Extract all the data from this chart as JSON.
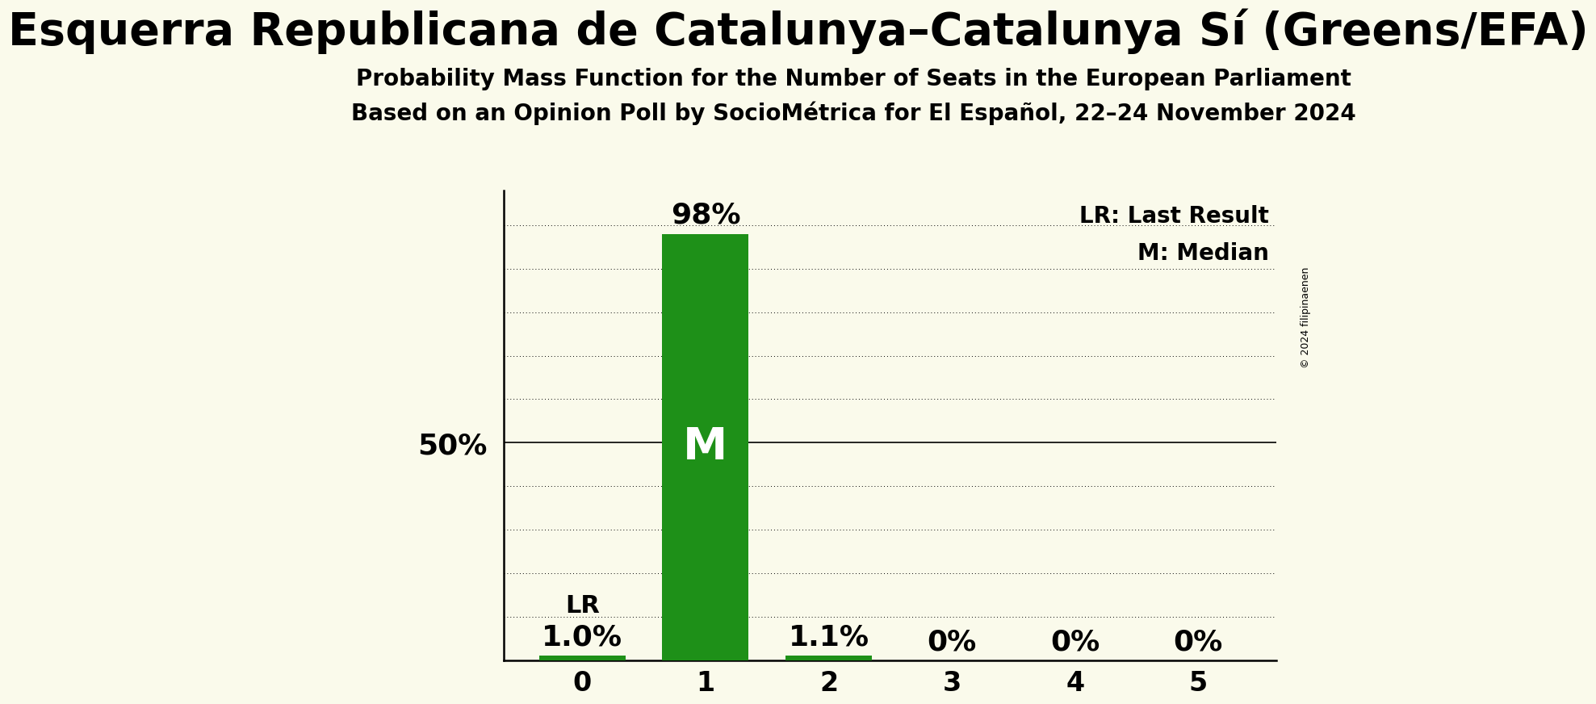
{
  "title": "Esquerra Republicana de Catalunya–Catalunya Sí (Greens/EFA)",
  "subtitle1": "Probability Mass Function for the Number of Seats in the European Parliament",
  "subtitle2": "Based on an Opinion Poll by SocioMétrica for El Español, 22–24 November 2024",
  "categories": [
    0,
    1,
    2,
    3,
    4,
    5
  ],
  "values": [
    1.0,
    98.0,
    1.1,
    0.0,
    0.0,
    0.0
  ],
  "bar_color": "#1E9018",
  "background_color": "#FAFAEB",
  "median_bar": 1,
  "last_result_bar": 0,
  "last_result_label": "LR",
  "median_label": "M",
  "ylabel_text": "50%",
  "ylabel_value": 50,
  "ylim": [
    0,
    108
  ],
  "legend_lr": "LR: Last Result",
  "legend_m": "M: Median",
  "copyright": "© 2024 filipinaenen",
  "title_fontsize": 40,
  "subtitle_fontsize": 20,
  "annotation_fontsize": 22,
  "bar_label_fontsize": 26,
  "axis_tick_fontsize": 24,
  "ylabel_fontsize": 26,
  "legend_fontsize": 20,
  "median_label_fontsize": 40,
  "value_label_fontsize": 26
}
